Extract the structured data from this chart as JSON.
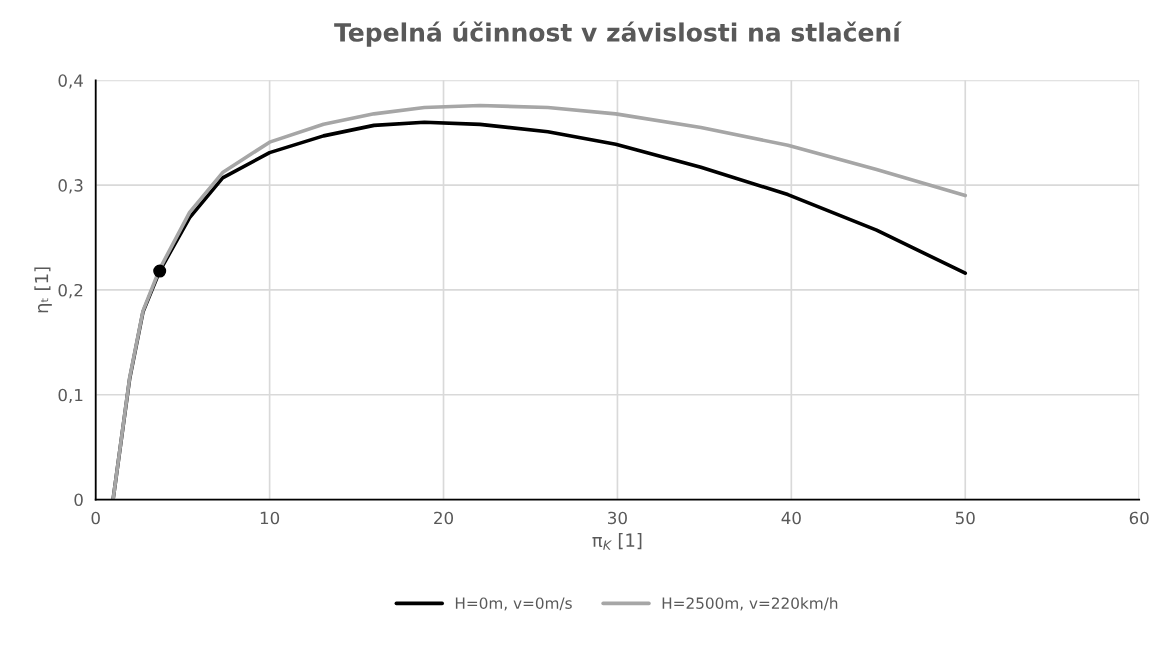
{
  "chart_data": {
    "type": "line",
    "title": "Tepelná účinnost v závislosti na stlačení",
    "xlabel": "π$_{K}$ [1]",
    "ylabel": "ηₜ [1]",
    "xlim": [
      0,
      60
    ],
    "xticks": [
      0,
      10,
      20,
      30,
      40,
      50,
      60
    ],
    "ylim": [
      0,
      0.4
    ],
    "yticks": [
      {
        "value": 0,
        "label": "0"
      },
      {
        "value": 0.1,
        "label": "0,1"
      },
      {
        "value": 0.2,
        "label": "0,2"
      },
      {
        "value": 0.3,
        "label": "0,3"
      },
      {
        "value": 0.4,
        "label": "0,4"
      }
    ],
    "grid": true,
    "legend": "bottom",
    "line_style": "solid",
    "series": [
      {
        "name": "H=0m, v=0m/s",
        "color": "#000000",
        "x": [
          1,
          1.95,
          2.72,
          3.68,
          5.4,
          7.3,
          10,
          13.1,
          16,
          18.9,
          22.1,
          26,
          29.9,
          34.8,
          39.8,
          44.9,
          50
        ],
        "values": [
          0,
          0.115,
          0.179,
          0.218,
          0.269,
          0.307,
          0.331,
          0.347,
          0.357,
          0.36,
          0.358,
          0.351,
          0.339,
          0.317,
          0.291,
          0.257,
          0.216
        ]
      },
      {
        "name": "H=2500m, v=220km/h",
        "color": "#a6a6a6",
        "x": [
          1,
          1.95,
          2.72,
          3.68,
          5.4,
          7.3,
          10,
          13.1,
          16,
          18.9,
          22.1,
          26,
          29.9,
          34.8,
          39.8,
          44.9,
          50
        ],
        "values": [
          0,
          0.116,
          0.18,
          0.22,
          0.274,
          0.312,
          0.341,
          0.358,
          0.368,
          0.374,
          0.376,
          0.374,
          0.368,
          0.355,
          0.338,
          0.315,
          0.29
        ]
      },
      {
        "type": "scatter",
        "color": "#000000",
        "marker": "circle",
        "x": [
          3.68
        ],
        "values": [
          0.218
        ]
      }
    ]
  }
}
